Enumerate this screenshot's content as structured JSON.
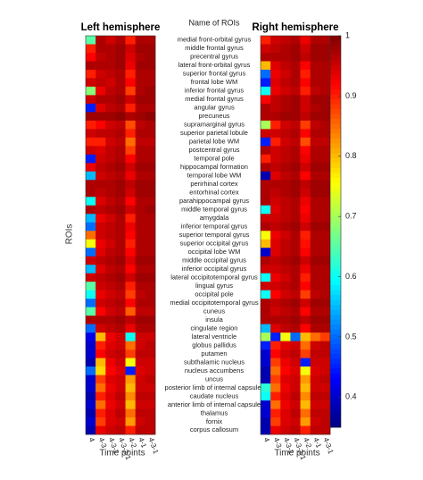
{
  "chart_data": {
    "type": "heatmap",
    "title": "Name of ROIs",
    "y_label": "ROIs",
    "colorscale": "jet",
    "clim": [
      0.35,
      1
    ],
    "cticks": [
      0.4,
      0.5,
      0.6,
      0.7,
      0.8,
      0.9,
      1
    ],
    "rows": [
      "medial front-orbital gyrus",
      "middle frontal gyrus",
      "precentral gyrus",
      "lateral front-orbital gyrus",
      "superior frontal gyrus",
      "frontal lobe WM",
      "inferior frontal gyrus",
      "medial frontal gyrus",
      "angular gyrus",
      "precuneus",
      "supramarginal gyrus",
      "superior parietal lobule",
      "parietal lobe WM",
      "postcentral gyrus",
      "temporal pole",
      "hippocampal formation",
      "temporal lobe WM",
      "perirhinal cortex",
      "entorhinal cortex",
      "parahippocampal gyrus",
      "middle temporal gyrus",
      "amygdala",
      "inferior temporal gyrus",
      "superior temporal gyrus",
      "superior occipital gyrus",
      "occipital lobe WM",
      "middle occipital gyrus",
      "inferior occipital gyrus",
      "lateral occipitotemporal gyrus",
      "lingual gyrus",
      "occipital pole",
      "medial occipitotemporal gyrus",
      "cuneus",
      "insula",
      "cingulate region",
      "lateral ventricle",
      "globus pallidus",
      "putamen",
      "subthalamic nucleus",
      "nucleus accumbens",
      "uncus",
      "posterior limb of internal capsule*",
      "caudate nucleus",
      "anterior limb of internal capsule",
      "thalamus",
      "fornix",
      "corpus callosum"
    ],
    "panels": [
      {
        "title": "Left hemisphere",
        "x_label": "Time points",
        "columns": [
          "4",
          "4-3",
          "4-3-2",
          "4-3-2-1",
          "4-2",
          "4-1",
          "4-3-1"
        ],
        "values": [
          [
            0.65,
            0.97,
            0.95,
            0.97,
            0.9,
            0.97,
            0.97
          ],
          [
            0.9,
            0.97,
            0.97,
            0.98,
            0.95,
            0.98,
            0.98
          ],
          [
            0.92,
            0.96,
            0.97,
            0.98,
            0.94,
            0.97,
            0.98
          ],
          [
            0.97,
            0.97,
            0.97,
            0.98,
            0.93,
            0.98,
            0.98
          ],
          [
            0.9,
            0.95,
            0.96,
            0.97,
            0.9,
            0.97,
            0.97
          ],
          [
            0.95,
            0.96,
            0.95,
            0.97,
            0.92,
            0.97,
            0.97
          ],
          [
            0.68,
            0.93,
            0.96,
            0.97,
            0.88,
            0.97,
            0.98
          ],
          [
            0.95,
            0.97,
            0.97,
            0.98,
            0.95,
            0.98,
            0.98
          ],
          [
            0.45,
            0.94,
            0.96,
            0.97,
            0.9,
            0.97,
            0.97
          ],
          [
            0.98,
            0.98,
            0.98,
            0.99,
            0.97,
            0.98,
            0.99
          ],
          [
            0.9,
            0.92,
            0.95,
            0.96,
            0.87,
            0.96,
            0.97
          ],
          [
            0.95,
            0.96,
            0.96,
            0.97,
            0.9,
            0.97,
            0.97
          ],
          [
            0.9,
            0.9,
            0.95,
            0.96,
            0.85,
            0.96,
            0.96
          ],
          [
            0.95,
            0.94,
            0.96,
            0.97,
            0.88,
            0.97,
            0.97
          ],
          [
            0.45,
            0.95,
            0.96,
            0.97,
            0.92,
            0.97,
            0.97
          ],
          [
            0.93,
            0.96,
            0.97,
            0.98,
            0.95,
            0.98,
            0.98
          ],
          [
            0.55,
            0.95,
            0.96,
            0.97,
            0.93,
            0.97,
            0.97
          ],
          [
            0.97,
            0.97,
            0.97,
            0.98,
            0.96,
            0.98,
            0.98
          ],
          [
            0.97,
            0.96,
            0.97,
            0.98,
            0.95,
            0.98,
            0.98
          ],
          [
            0.6,
            0.94,
            0.96,
            0.97,
            0.92,
            0.97,
            0.97
          ],
          [
            0.97,
            0.96,
            0.97,
            0.98,
            0.95,
            0.97,
            0.98
          ],
          [
            0.55,
            0.93,
            0.95,
            0.97,
            0.9,
            0.97,
            0.97
          ],
          [
            0.5,
            0.95,
            0.96,
            0.97,
            0.93,
            0.97,
            0.97
          ],
          [
            0.85,
            0.95,
            0.96,
            0.97,
            0.92,
            0.97,
            0.97
          ],
          [
            0.75,
            0.93,
            0.95,
            0.97,
            0.9,
            0.97,
            0.97
          ],
          [
            0.5,
            0.94,
            0.96,
            0.97,
            0.92,
            0.97,
            0.97
          ],
          [
            0.95,
            0.96,
            0.97,
            0.98,
            0.94,
            0.98,
            0.98
          ],
          [
            0.55,
            0.94,
            0.96,
            0.97,
            0.92,
            0.97,
            0.97
          ],
          [
            0.95,
            0.96,
            0.97,
            0.98,
            0.95,
            0.98,
            0.98
          ],
          [
            0.65,
            0.95,
            0.96,
            0.97,
            0.9,
            0.97,
            0.97
          ],
          [
            0.6,
            0.93,
            0.95,
            0.96,
            0.88,
            0.96,
            0.97
          ],
          [
            0.5,
            0.95,
            0.96,
            0.97,
            0.92,
            0.97,
            0.97
          ],
          [
            0.65,
            0.92,
            0.95,
            0.96,
            0.86,
            0.96,
            0.96
          ],
          [
            0.97,
            0.97,
            0.97,
            0.98,
            0.96,
            0.98,
            0.98
          ],
          [
            0.5,
            0.95,
            0.96,
            0.97,
            0.93,
            0.97,
            0.97
          ],
          [
            0.42,
            0.8,
            0.93,
            0.95,
            0.6,
            0.95,
            0.95
          ],
          [
            0.4,
            0.9,
            0.94,
            0.95,
            0.85,
            0.95,
            0.96
          ],
          [
            0.4,
            0.92,
            0.95,
            0.96,
            0.88,
            0.96,
            0.96
          ],
          [
            0.38,
            0.8,
            0.93,
            0.95,
            0.75,
            0.95,
            0.95
          ],
          [
            0.5,
            0.78,
            0.92,
            0.94,
            0.45,
            0.94,
            0.95
          ],
          [
            0.4,
            0.88,
            0.94,
            0.95,
            0.82,
            0.95,
            0.96
          ],
          [
            0.4,
            0.85,
            0.93,
            0.95,
            0.8,
            0.95,
            0.95
          ],
          [
            0.38,
            0.9,
            0.94,
            0.96,
            0.83,
            0.96,
            0.96
          ],
          [
            0.4,
            0.85,
            0.93,
            0.95,
            0.8,
            0.95,
            0.95
          ],
          [
            0.38,
            0.9,
            0.94,
            0.96,
            0.85,
            0.96,
            0.96
          ],
          [
            0.4,
            0.88,
            0.94,
            0.95,
            0.82,
            0.95,
            0.96
          ],
          [
            0.38,
            0.93,
            0.95,
            0.96,
            0.9,
            0.96,
            0.96
          ]
        ]
      },
      {
        "title": "Right hemisphere",
        "x_label": "Time points",
        "columns": [
          "4",
          "4-3",
          "4-3-2",
          "4-3-2-1",
          "4-2",
          "4-1",
          "4-3-1"
        ],
        "values": [
          [
            0.9,
            0.95,
            0.96,
            0.97,
            0.93,
            0.97,
            0.97
          ],
          [
            0.95,
            0.96,
            0.97,
            0.98,
            0.95,
            0.98,
            0.98
          ],
          [
            0.97,
            0.97,
            0.97,
            0.98,
            0.96,
            0.98,
            0.98
          ],
          [
            0.8,
            0.94,
            0.96,
            0.97,
            0.92,
            0.97,
            0.97
          ],
          [
            0.5,
            0.93,
            0.95,
            0.97,
            0.9,
            0.97,
            0.97
          ],
          [
            0.45,
            0.94,
            0.96,
            0.97,
            0.92,
            0.97,
            0.97
          ],
          [
            0.6,
            0.93,
            0.95,
            0.96,
            0.9,
            0.96,
            0.97
          ],
          [
            0.92,
            0.96,
            0.97,
            0.98,
            0.95,
            0.98,
            0.98
          ],
          [
            0.97,
            0.96,
            0.97,
            0.98,
            0.95,
            0.97,
            0.98
          ],
          [
            0.97,
            0.97,
            0.98,
            0.98,
            0.96,
            0.98,
            0.98
          ],
          [
            0.7,
            0.9,
            0.95,
            0.96,
            0.88,
            0.96,
            0.97
          ],
          [
            0.95,
            0.95,
            0.96,
            0.97,
            0.92,
            0.97,
            0.97
          ],
          [
            0.45,
            0.9,
            0.95,
            0.96,
            0.87,
            0.96,
            0.96
          ],
          [
            0.97,
            0.95,
            0.96,
            0.97,
            0.92,
            0.97,
            0.97
          ],
          [
            0.9,
            0.95,
            0.96,
            0.97,
            0.93,
            0.97,
            0.97
          ],
          [
            0.97,
            0.96,
            0.97,
            0.98,
            0.95,
            0.98,
            0.98
          ],
          [
            0.38,
            0.94,
            0.96,
            0.97,
            0.92,
            0.97,
            0.97
          ],
          [
            0.97,
            0.97,
            0.97,
            0.98,
            0.96,
            0.98,
            0.98
          ],
          [
            0.97,
            0.96,
            0.97,
            0.98,
            0.95,
            0.98,
            0.98
          ],
          [
            0.97,
            0.95,
            0.96,
            0.97,
            0.93,
            0.97,
            0.97
          ],
          [
            0.6,
            0.94,
            0.96,
            0.97,
            0.92,
            0.97,
            0.97
          ],
          [
            0.95,
            0.95,
            0.96,
            0.97,
            0.93,
            0.97,
            0.97
          ],
          [
            0.97,
            0.96,
            0.97,
            0.98,
            0.95,
            0.98,
            0.98
          ],
          [
            0.75,
            0.93,
            0.95,
            0.97,
            0.9,
            0.97,
            0.97
          ],
          [
            0.8,
            0.94,
            0.96,
            0.97,
            0.91,
            0.97,
            0.97
          ],
          [
            0.4,
            0.94,
            0.96,
            0.97,
            0.92,
            0.97,
            0.97
          ],
          [
            0.97,
            0.96,
            0.97,
            0.98,
            0.95,
            0.98,
            0.98
          ],
          [
            0.95,
            0.95,
            0.96,
            0.97,
            0.93,
            0.97,
            0.97
          ],
          [
            0.6,
            0.93,
            0.95,
            0.97,
            0.9,
            0.97,
            0.97
          ],
          [
            0.95,
            0.95,
            0.96,
            0.97,
            0.92,
            0.97,
            0.97
          ],
          [
            0.6,
            0.92,
            0.95,
            0.96,
            0.88,
            0.96,
            0.97
          ],
          [
            0.97,
            0.96,
            0.97,
            0.98,
            0.95,
            0.98,
            0.98
          ],
          [
            0.97,
            0.95,
            0.96,
            0.97,
            0.92,
            0.97,
            0.97
          ],
          [
            0.97,
            0.97,
            0.97,
            0.98,
            0.96,
            0.98,
            0.98
          ],
          [
            0.55,
            0.94,
            0.96,
            0.97,
            0.92,
            0.97,
            0.97
          ],
          [
            0.7,
            0.45,
            0.75,
            0.5,
            0.8,
            0.85,
            0.88
          ],
          [
            0.45,
            0.9,
            0.94,
            0.95,
            0.85,
            0.95,
            0.96
          ],
          [
            0.4,
            0.92,
            0.95,
            0.96,
            0.88,
            0.96,
            0.96
          ],
          [
            0.4,
            0.88,
            0.93,
            0.95,
            0.45,
            0.95,
            0.95
          ],
          [
            0.38,
            0.85,
            0.92,
            0.94,
            0.75,
            0.94,
            0.95
          ],
          [
            0.38,
            0.88,
            0.94,
            0.95,
            0.82,
            0.95,
            0.96
          ],
          [
            0.62,
            0.85,
            0.93,
            0.95,
            0.8,
            0.95,
            0.95
          ],
          [
            0.6,
            0.9,
            0.94,
            0.96,
            0.83,
            0.96,
            0.96
          ],
          [
            0.4,
            0.85,
            0.93,
            0.95,
            0.8,
            0.95,
            0.95
          ],
          [
            0.4,
            0.9,
            0.94,
            0.96,
            0.85,
            0.96,
            0.96
          ],
          [
            0.38,
            0.88,
            0.94,
            0.95,
            0.82,
            0.95,
            0.96
          ],
          [
            0.38,
            0.93,
            0.95,
            0.96,
            0.9,
            0.96,
            0.96
          ]
        ]
      }
    ]
  }
}
